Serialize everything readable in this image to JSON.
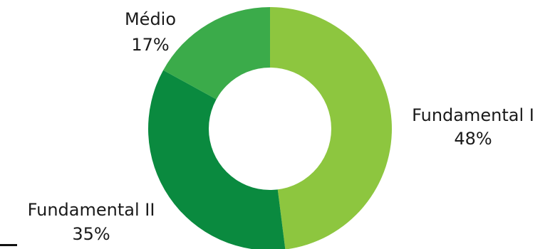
{
  "chart_data": {
    "type": "pie",
    "variant": "donut",
    "slices": [
      {
        "label": "Fundamental I",
        "value": 48,
        "display": "48%",
        "color": "#8dc63f"
      },
      {
        "label": "Fundamental II",
        "value": 35,
        "display": "35%",
        "color": "#0a8a3f"
      },
      {
        "label": "Médio",
        "value": 17,
        "display": "17%",
        "color": "#3bab4a"
      }
    ],
    "start": "top",
    "direction": "clockwise",
    "legend": "none"
  }
}
